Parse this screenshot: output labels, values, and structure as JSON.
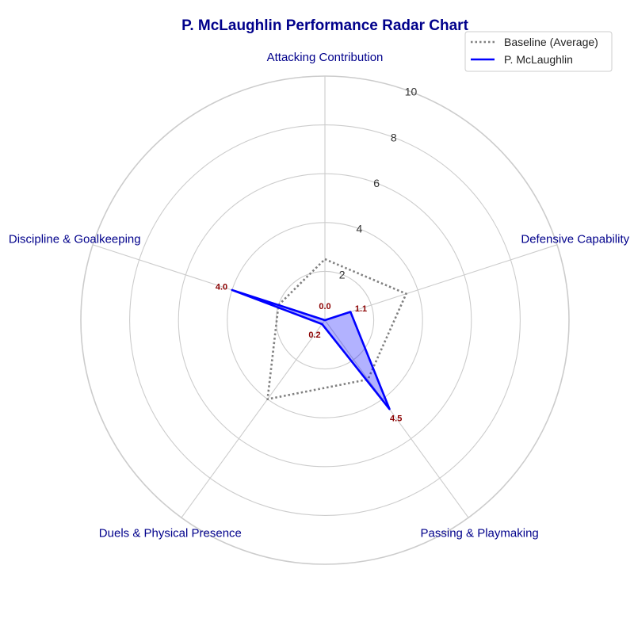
{
  "chart_data": {
    "type": "radar",
    "title": "P. McLaughlin Performance Radar Chart",
    "categories": [
      "Attacking Contribution",
      "Defensive Capability",
      "Passing & Playmaking",
      "Duels & Physical Presence",
      "Discipline & Goalkeeping"
    ],
    "rlim": [
      0,
      10
    ],
    "rticks": [
      2,
      4,
      6,
      8,
      10
    ],
    "rtick_labels": [
      "2",
      "4",
      "6",
      "8",
      "10"
    ],
    "grid": true,
    "legend_position": "top-right",
    "series": [
      {
        "name": "Baseline (Average)",
        "values": [
          2.5,
          3.5,
          3.0,
          4.0,
          2.0
        ],
        "color": "#808080",
        "line_style": "dotted",
        "fill": false,
        "show_labels": false
      },
      {
        "name": "P. McLaughlin",
        "values": [
          0.0,
          1.1,
          4.5,
          0.2,
          4.0
        ],
        "value_labels": [
          "0.0",
          "1.1",
          "4.5",
          "0.2",
          "4.0"
        ],
        "color": "#0000ff",
        "fill_color": "#0000ff",
        "line_style": "solid",
        "fill": true,
        "show_labels": true
      }
    ]
  },
  "colors": {
    "title": "#00008b",
    "axis_label": "#00008b",
    "data_label": "#8b0000",
    "grid": "#cccccc"
  }
}
